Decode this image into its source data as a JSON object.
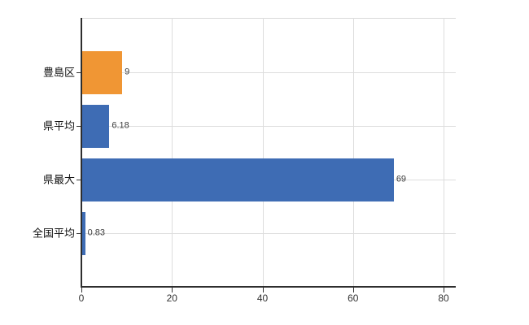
{
  "chart_data": {
    "type": "bar",
    "orientation": "horizontal",
    "title": "",
    "xlabel": "",
    "ylabel": "",
    "categories": [
      "豊島区",
      "県平均",
      "県最大",
      "全国平均"
    ],
    "values": [
      9,
      6.18,
      69,
      0.83
    ],
    "value_labels": [
      "9",
      "6.18",
      "69",
      "0.83"
    ],
    "bar_colors": [
      "#f09634",
      "#3e6cb4",
      "#3e6cb4",
      "#3e6cb4"
    ],
    "highlight_category": "豊島区",
    "x_ticks": [
      0,
      20,
      40,
      60,
      80
    ],
    "x_tick_labels": [
      "0",
      "20",
      "40",
      "60",
      "80"
    ],
    "xlim": [
      0,
      82.7
    ],
    "grid": true,
    "legend_position": "none"
  },
  "colors": {
    "background": "#ffffff",
    "bar_blue": "#3e6cb4",
    "bar_orange": "#f09634",
    "gridline": "#dddddd",
    "top_border": "#d9d9d9",
    "axis": "#2e2e2e",
    "tick_mark": "#333333",
    "category_label": "#111111",
    "value_label": "#3c3c3c",
    "tick_label": "#333333"
  }
}
